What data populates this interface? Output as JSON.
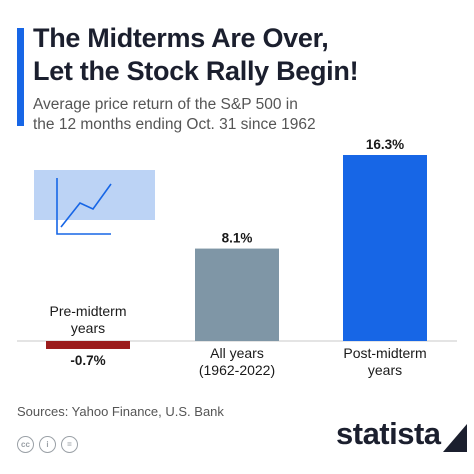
{
  "header": {
    "title_line1": "The Midterms Are Over,",
    "title_line2": "Let the Stock Rally Begin!",
    "subtitle_line1": "Average price return of the S&P 500 in",
    "subtitle_line2": "the 12 months ending Oct. 31 since 1962"
  },
  "footer": {
    "source": "Sources: Yahoo Finance, U.S. Bank",
    "brand": "statista",
    "license_icons": [
      "cc-icon",
      "person-icon",
      "equals-icon"
    ]
  },
  "colors": {
    "accent": "#1766e6",
    "negative": "#9b1c1c",
    "neutral": "#7f96a6",
    "positive": "#1766e6",
    "icon_fill": "#bcd3f5"
  },
  "chart_data": {
    "type": "bar",
    "categories": [
      [
        "Pre-midterm",
        "years"
      ],
      [
        "All years",
        "(1962-2022)"
      ],
      [
        "Post-midterm",
        "years"
      ]
    ],
    "values": [
      -0.7,
      8.1,
      16.3
    ],
    "value_labels": [
      "-0.7%",
      "8.1%",
      "16.3%"
    ],
    "bar_colors": [
      "#9b1c1c",
      "#7f96a6",
      "#1766e6"
    ],
    "unit": "%",
    "ylim": [
      -0.7,
      16.3
    ],
    "grid": false,
    "legend": "none",
    "decoration": "line-chart-icon"
  }
}
